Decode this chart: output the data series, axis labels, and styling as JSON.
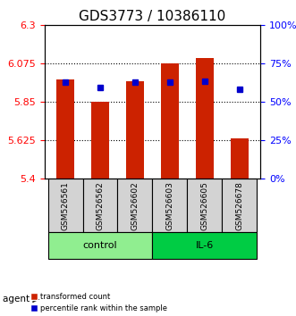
{
  "title": "GDS3773 / 10386110",
  "samples": [
    "GSM526561",
    "GSM526562",
    "GSM526602",
    "GSM526603",
    "GSM526605",
    "GSM526678"
  ],
  "red_values": [
    5.98,
    5.852,
    5.972,
    6.075,
    6.11,
    5.635
  ],
  "blue_values": [
    5.965,
    5.935,
    5.965,
    5.968,
    5.972,
    5.925
  ],
  "ymin": 5.4,
  "ymax": 6.3,
  "yticks_left": [
    5.4,
    5.625,
    5.85,
    6.075,
    6.3
  ],
  "yticks_right": [
    0,
    25,
    50,
    75,
    100
  ],
  "yticks_right_labels": [
    "0%",
    "25%",
    "50%",
    "75%",
    "100%"
  ],
  "groups": [
    {
      "label": "control",
      "indices": [
        0,
        1,
        2
      ],
      "color": "#90EE90"
    },
    {
      "label": "IL-6",
      "indices": [
        3,
        4,
        5
      ],
      "color": "#00CC00"
    }
  ],
  "bar_color": "#CC2200",
  "blue_color": "#0000CC",
  "title_fontsize": 11,
  "bar_width": 0.5,
  "legend_items": [
    {
      "label": "transformed count",
      "color": "#CC2200"
    },
    {
      "label": "percentile rank within the sample",
      "color": "#0000CC"
    }
  ]
}
